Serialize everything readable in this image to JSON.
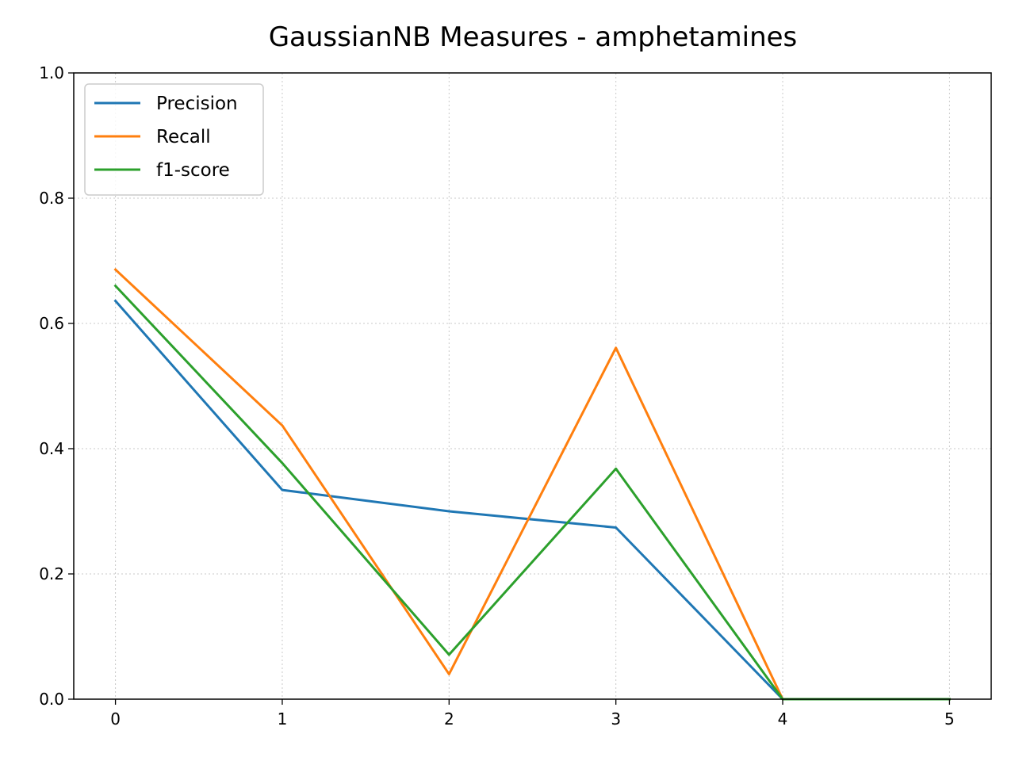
{
  "chart_data": {
    "type": "line",
    "title": "GaussianNB Measures - amphetamines",
    "xlabel": "",
    "ylabel": "",
    "x": [
      0,
      1,
      2,
      3,
      4,
      5
    ],
    "xlim": [
      -0.25,
      5.25
    ],
    "ylim": [
      0.0,
      1.0
    ],
    "xticks": [
      0,
      1,
      2,
      3,
      4,
      5
    ],
    "yticks": [
      0.0,
      0.2,
      0.4,
      0.6,
      0.8,
      1.0
    ],
    "xtick_labels": [
      "0",
      "1",
      "2",
      "3",
      "4",
      "5"
    ],
    "ytick_labels": [
      "0.0",
      "0.2",
      "0.4",
      "0.6",
      "0.8",
      "1.0"
    ],
    "grid": true,
    "legend_position": "top-left",
    "series": [
      {
        "name": "Precision",
        "color": "#1f77b4",
        "values": [
          0.636,
          0.334,
          0.3,
          0.274,
          0.0,
          0.0
        ]
      },
      {
        "name": "Recall",
        "color": "#ff7f0e",
        "values": [
          0.686,
          0.437,
          0.04,
          0.561,
          0.0,
          0.0
        ]
      },
      {
        "name": "f1-score",
        "color": "#2ca02c",
        "values": [
          0.66,
          0.377,
          0.071,
          0.368,
          0.0,
          0.0
        ]
      }
    ]
  }
}
